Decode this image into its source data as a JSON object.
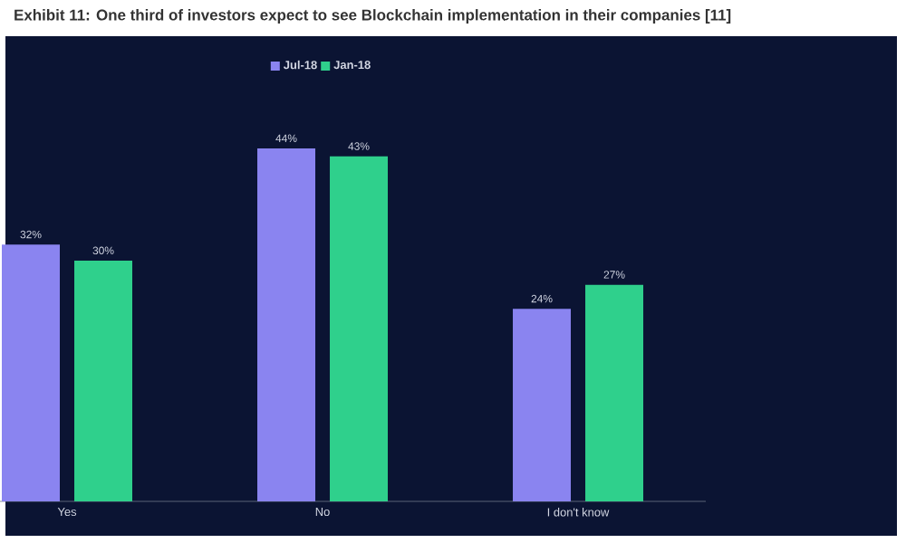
{
  "chart_data": {
    "type": "bar",
    "title": "Exhibit 11: One third of investors expect to see Blockchain implementation in their companies [11]",
    "categories": [
      "Yes",
      "No",
      "I don't know"
    ],
    "series": [
      {
        "name": "Jul-18",
        "color": "#8a84f0",
        "values": [
          32,
          44,
          24
        ],
        "value_labels": [
          "32%",
          "44%",
          "24%"
        ]
      },
      {
        "name": "Jan-18",
        "color": "#2fd08c",
        "values": [
          30,
          43,
          27
        ],
        "value_labels": [
          "30%",
          "43%",
          "27%"
        ]
      }
    ],
    "legend": "top",
    "tick_labels": "x"
  }
}
